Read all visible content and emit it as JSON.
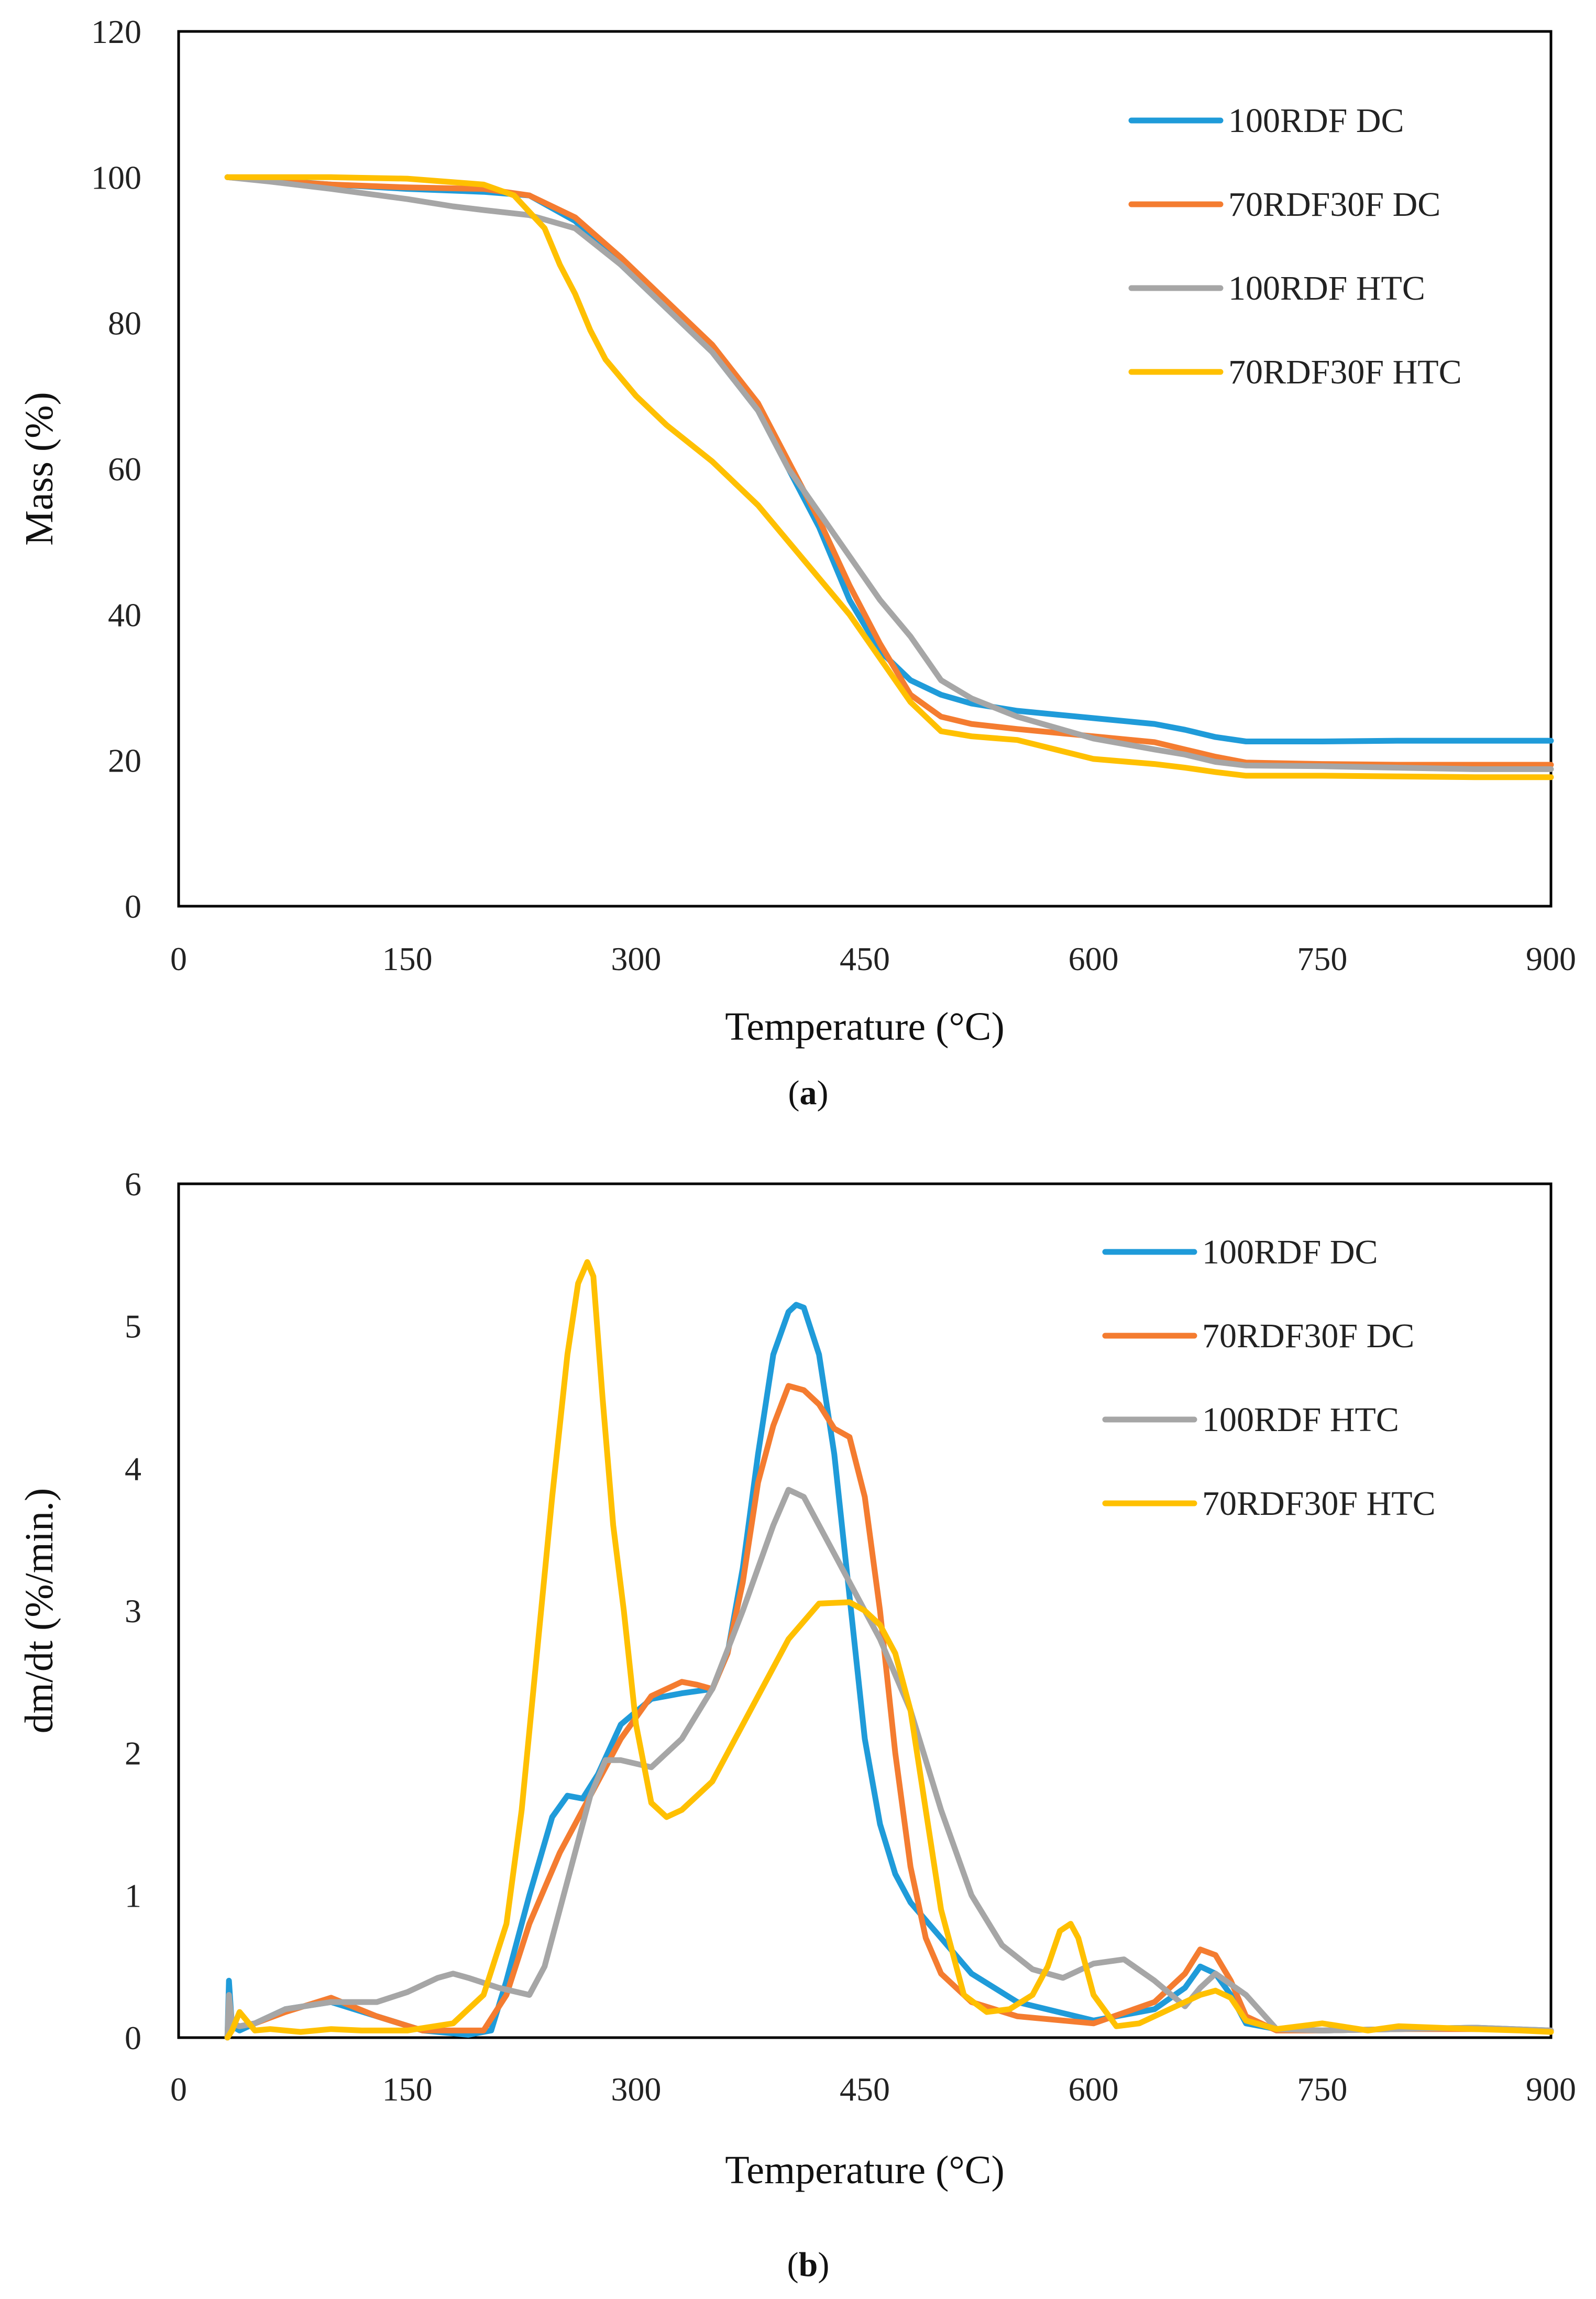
{
  "chart_data": [
    {
      "type": "line",
      "caption_open": "(",
      "caption_letter": "a",
      "caption_close": ")",
      "xlabel": "Temperature (°C)",
      "ylabel": "Mass (%)",
      "xlim": [
        0,
        900
      ],
      "ylim": [
        0,
        120
      ],
      "xticks": [
        0,
        150,
        300,
        450,
        600,
        750,
        900
      ],
      "yticks": [
        0,
        20,
        40,
        60,
        80,
        100,
        120
      ],
      "legend_position": "top-right",
      "series": [
        {
          "name": "100RDF DC",
          "color": "#1F9BD9",
          "x": [
            32,
            60,
            100,
            150,
            200,
            230,
            260,
            290,
            320,
            350,
            380,
            400,
            420,
            440,
            460,
            480,
            500,
            520,
            550,
            600,
            640,
            660,
            680,
            700,
            750,
            800,
            850,
            900
          ],
          "y": [
            100,
            99.6,
            99,
            98.4,
            98,
            97.5,
            94,
            88,
            82,
            76,
            68,
            60,
            52,
            42,
            35,
            31,
            29,
            27.8,
            26.8,
            25.8,
            25,
            24.2,
            23.2,
            22.6,
            22.6,
            22.7,
            22.7,
            22.7
          ]
        },
        {
          "name": "70RDF30F DC",
          "color": "#F47C30",
          "x": [
            32,
            60,
            100,
            150,
            200,
            230,
            260,
            290,
            320,
            350,
            380,
            400,
            420,
            440,
            460,
            480,
            500,
            520,
            550,
            600,
            640,
            660,
            680,
            700,
            750,
            800,
            850,
            900
          ],
          "y": [
            100,
            99.5,
            99,
            98.6,
            98.4,
            97.5,
            94.5,
            89,
            83,
            77,
            69,
            61,
            53,
            44,
            36,
            29,
            26,
            25,
            24.3,
            23.3,
            22.5,
            21.5,
            20.5,
            19.7,
            19.5,
            19.4,
            19.4,
            19.4
          ]
        },
        {
          "name": "100RDF HTC",
          "color": "#A6A6A6",
          "x": [
            32,
            60,
            100,
            150,
            180,
            200,
            230,
            260,
            290,
            320,
            350,
            380,
            400,
            420,
            440,
            460,
            480,
            500,
            520,
            550,
            600,
            640,
            660,
            680,
            700,
            750,
            800,
            850,
            900
          ],
          "y": [
            100,
            99.4,
            98.4,
            97,
            96,
            95.5,
            94.8,
            93,
            88,
            82,
            76,
            68,
            60,
            54,
            48,
            42,
            37,
            31,
            28.5,
            26,
            23,
            21.5,
            20.8,
            19.8,
            19.3,
            19.2,
            19,
            18.8,
            18.8
          ]
        },
        {
          "name": "70RDF30F HTC",
          "color": "#FFC000",
          "x": [
            32,
            60,
            100,
            150,
            200,
            220,
            240,
            250,
            260,
            270,
            280,
            300,
            320,
            350,
            380,
            400,
            420,
            440,
            460,
            480,
            500,
            520,
            550,
            600,
            640,
            660,
            680,
            700,
            750,
            800,
            850,
            900
          ],
          "y": [
            100,
            100,
            100,
            99.8,
            99,
            97.5,
            93,
            88,
            84,
            79,
            75,
            70,
            66,
            61,
            55,
            50,
            45,
            40,
            34,
            28,
            24,
            23.3,
            22.8,
            20.2,
            19.5,
            19,
            18.4,
            17.9,
            17.9,
            17.8,
            17.7,
            17.7
          ]
        }
      ]
    },
    {
      "type": "line",
      "caption_open": "(",
      "caption_letter": "b",
      "caption_close": ")",
      "xlabel": "Temperature (°C)",
      "ylabel": "dm/dt (%/min.)",
      "xlim": [
        0,
        900
      ],
      "ylim": [
        0,
        6
      ],
      "xticks": [
        0,
        150,
        300,
        450,
        600,
        750,
        900
      ],
      "yticks": [
        0,
        1,
        2,
        3,
        4,
        5,
        6
      ],
      "legend_position": "top-right",
      "series": [
        {
          "name": "100RDF DC",
          "color": "#1F9BD9",
          "x": [
            32,
            33,
            35,
            40,
            50,
            70,
            100,
            130,
            160,
            190,
            205,
            215,
            230,
            245,
            255,
            265,
            275,
            290,
            310,
            330,
            350,
            360,
            370,
            380,
            390,
            400,
            405,
            410,
            420,
            430,
            440,
            450,
            460,
            470,
            480,
            500,
            520,
            550,
            600,
            640,
            660,
            670,
            680,
            690,
            700,
            720,
            750,
            800,
            850,
            900
          ],
          "y": [
            0,
            0.4,
            0.08,
            0.05,
            0.1,
            0.2,
            0.25,
            0.15,
            0.05,
            0.02,
            0.05,
            0.4,
            1.0,
            1.55,
            1.7,
            1.68,
            1.85,
            2.2,
            2.38,
            2.42,
            2.45,
            2.7,
            3.3,
            4.1,
            4.8,
            5.1,
            5.15,
            5.13,
            4.8,
            4.1,
            3.1,
            2.1,
            1.5,
            1.15,
            0.95,
            0.7,
            0.45,
            0.25,
            0.12,
            0.2,
            0.35,
            0.5,
            0.45,
            0.3,
            0.1,
            0.06,
            0.05,
            0.06,
            0.07,
            0.05
          ]
        },
        {
          "name": "70RDF30F DC",
          "color": "#F47C30",
          "x": [
            32,
            33,
            35,
            40,
            50,
            70,
            100,
            130,
            160,
            200,
            215,
            230,
            250,
            270,
            290,
            310,
            330,
            340,
            350,
            360,
            370,
            380,
            390,
            400,
            410,
            420,
            430,
            440,
            450,
            460,
            470,
            480,
            490,
            500,
            520,
            550,
            600,
            640,
            660,
            670,
            680,
            690,
            700,
            720,
            750,
            800,
            850,
            900
          ],
          "y": [
            0,
            0.2,
            0.1,
            0.08,
            0.1,
            0.18,
            0.28,
            0.15,
            0.05,
            0.05,
            0.3,
            0.8,
            1.3,
            1.7,
            2.1,
            2.4,
            2.5,
            2.48,
            2.45,
            2.7,
            3.2,
            3.9,
            4.3,
            4.58,
            4.55,
            4.45,
            4.28,
            4.22,
            3.8,
            3.0,
            2.0,
            1.2,
            0.7,
            0.45,
            0.25,
            0.15,
            0.1,
            0.25,
            0.45,
            0.62,
            0.58,
            0.4,
            0.15,
            0.05,
            0.05,
            0.06,
            0.06,
            0.05
          ]
        },
        {
          "name": "100RDF HTC",
          "color": "#A6A6A6",
          "x": [
            32,
            33,
            35,
            40,
            50,
            70,
            100,
            130,
            150,
            170,
            180,
            190,
            210,
            230,
            240,
            255,
            270,
            280,
            290,
            310,
            330,
            350,
            370,
            390,
            400,
            410,
            420,
            440,
            460,
            480,
            500,
            520,
            540,
            560,
            580,
            600,
            620,
            640,
            660,
            670,
            680,
            700,
            720,
            750,
            800,
            850,
            900
          ],
          "y": [
            0,
            0.3,
            0.1,
            0.08,
            0.1,
            0.2,
            0.25,
            0.25,
            0.32,
            0.42,
            0.45,
            0.42,
            0.35,
            0.3,
            0.5,
            1.1,
            1.7,
            1.95,
            1.95,
            1.9,
            2.1,
            2.45,
            3.0,
            3.6,
            3.85,
            3.8,
            3.6,
            3.2,
            2.8,
            2.3,
            1.6,
            1.0,
            0.65,
            0.48,
            0.42,
            0.52,
            0.55,
            0.4,
            0.22,
            0.35,
            0.45,
            0.3,
            0.06,
            0.05,
            0.06,
            0.07,
            0.05
          ]
        },
        {
          "name": "70RDF30F HTC",
          "color": "#FFC000",
          "x": [
            32,
            35,
            40,
            50,
            60,
            80,
            100,
            120,
            150,
            180,
            200,
            215,
            225,
            235,
            245,
            255,
            262,
            268,
            272,
            278,
            285,
            292,
            300,
            310,
            320,
            330,
            340,
            350,
            360,
            380,
            400,
            420,
            440,
            450,
            460,
            470,
            480,
            490,
            500,
            515,
            530,
            545,
            560,
            570,
            578,
            585,
            590,
            600,
            615,
            630,
            650,
            670,
            680,
            690,
            700,
            720,
            750,
            780,
            800,
            850,
            880,
            900
          ],
          "y": [
            0,
            0.05,
            0.18,
            0.05,
            0.06,
            0.04,
            0.06,
            0.05,
            0.05,
            0.1,
            0.3,
            0.8,
            1.6,
            2.7,
            3.8,
            4.8,
            5.3,
            5.45,
            5.35,
            4.5,
            3.6,
            3.0,
            2.2,
            1.65,
            1.55,
            1.6,
            1.7,
            1.8,
            2.0,
            2.4,
            2.8,
            3.05,
            3.06,
            3.0,
            2.9,
            2.7,
            2.3,
            1.6,
            0.9,
            0.3,
            0.18,
            0.2,
            0.3,
            0.5,
            0.75,
            0.8,
            0.7,
            0.3,
            0.08,
            0.1,
            0.2,
            0.3,
            0.33,
            0.28,
            0.12,
            0.06,
            0.1,
            0.05,
            0.08,
            0.06,
            0.05,
            0.04
          ]
        }
      ]
    }
  ]
}
